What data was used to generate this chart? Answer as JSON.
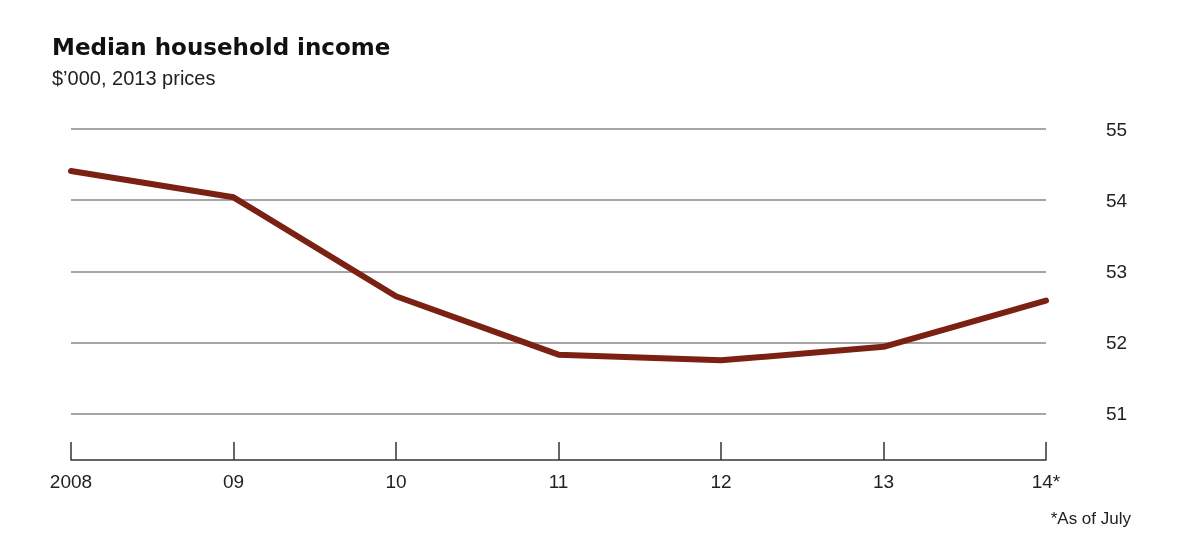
{
  "chart_data": {
    "type": "line",
    "title": "Median household income",
    "subtitle": "$’000, 2013 prices",
    "categories": [
      "2008",
      "09",
      "10",
      "11",
      "12",
      "13",
      "14*"
    ],
    "series": [
      {
        "color": "#7b2114",
        "values": [
          54.41,
          54.04,
          52.65,
          51.83,
          51.75,
          51.94,
          52.59
        ]
      }
    ],
    "ylim": [
      50.35,
      55
    ],
    "yticks": [
      51,
      52,
      53,
      54,
      55
    ],
    "grid": "y",
    "marker": "none",
    "line_style": "solid",
    "annotations": [
      "*As of July"
    ]
  }
}
